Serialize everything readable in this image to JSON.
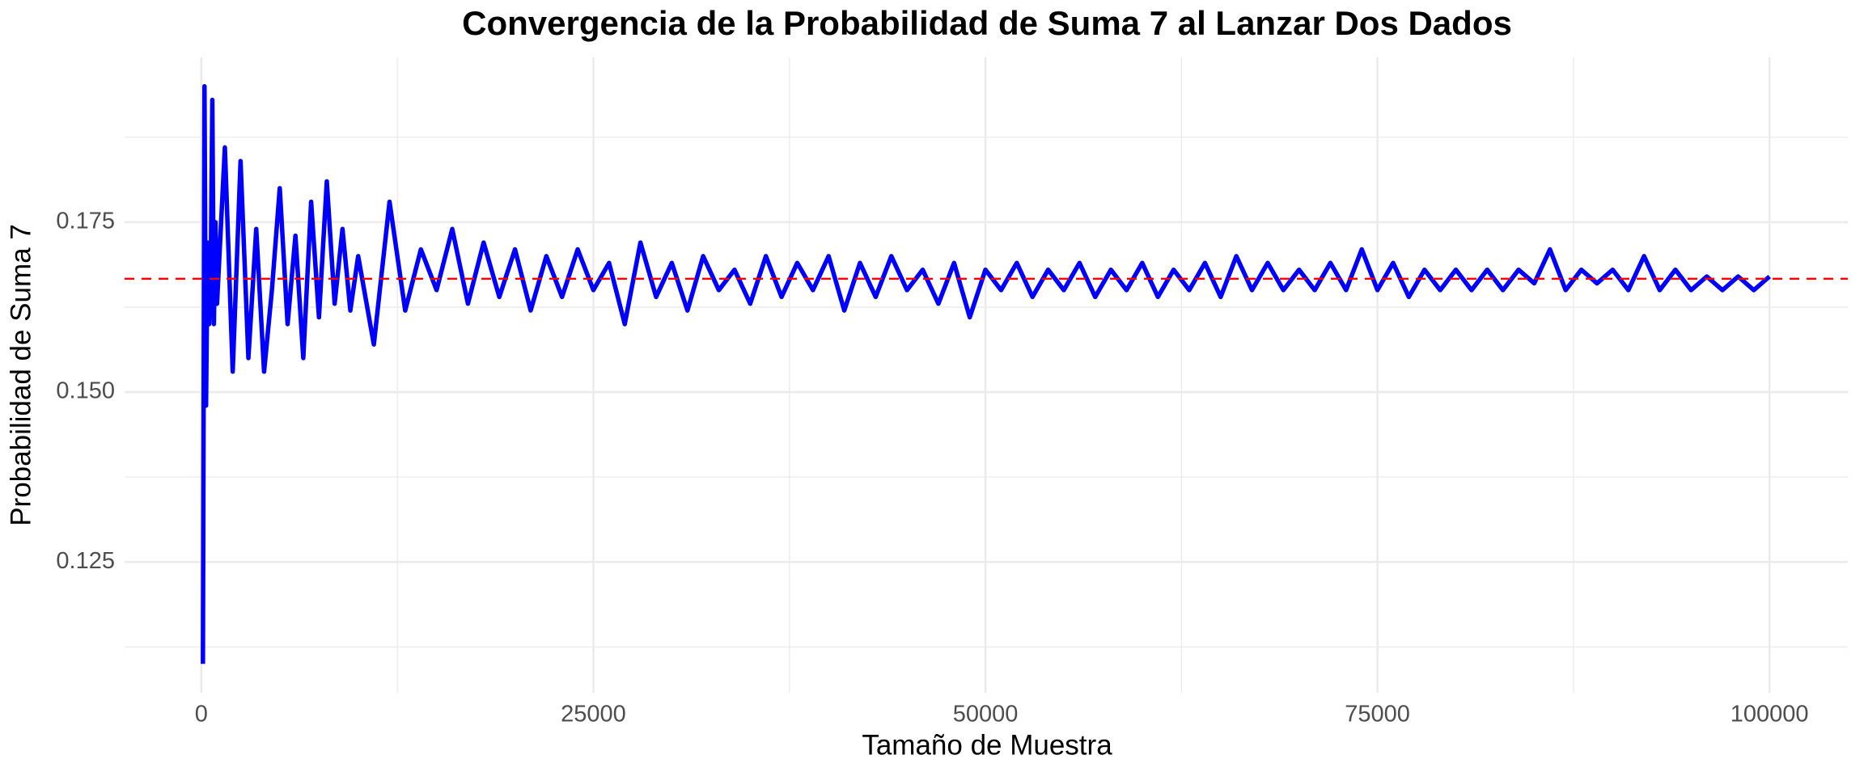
{
  "chart_data": {
    "type": "line",
    "title": "Convergencia de la Probabilidad de Suma 7 al Lanzar Dos Dados",
    "x_label": "Tamaño de Muestra",
    "y_label": "Probabilidad de Suma 7",
    "x": [
      100,
      200,
      300,
      400,
      500,
      600,
      700,
      800,
      900,
      1000,
      1500,
      2000,
      2500,
      3000,
      3500,
      4000,
      4500,
      5000,
      5500,
      6000,
      6500,
      7000,
      7500,
      8000,
      8500,
      9000,
      9500,
      10000,
      11000,
      12000,
      13000,
      14000,
      15000,
      16000,
      17000,
      18000,
      19000,
      20000,
      21000,
      22000,
      23000,
      24000,
      25000,
      26000,
      27000,
      28000,
      29000,
      30000,
      31000,
      32000,
      33000,
      34000,
      35000,
      36000,
      37000,
      38000,
      39000,
      40000,
      41000,
      42000,
      43000,
      44000,
      45000,
      46000,
      47000,
      48000,
      49000,
      50000,
      51000,
      52000,
      53000,
      54000,
      55000,
      56000,
      57000,
      58000,
      59000,
      60000,
      61000,
      62000,
      63000,
      64000,
      65000,
      66000,
      67000,
      68000,
      69000,
      70000,
      71000,
      72000,
      73000,
      74000,
      75000,
      76000,
      77000,
      78000,
      79000,
      80000,
      81000,
      82000,
      83000,
      84000,
      85000,
      86000,
      87000,
      88000,
      89000,
      90000,
      91000,
      92000,
      93000,
      94000,
      95000,
      96000,
      97000,
      98000,
      99000,
      100000
    ],
    "series": [
      {
        "name": "Probabilidad",
        "color": "#0000ff",
        "values": [
          0.11,
          0.195,
          0.148,
          0.172,
          0.16,
          0.168,
          0.193,
          0.16,
          0.175,
          0.163,
          0.186,
          0.153,
          0.184,
          0.155,
          0.174,
          0.153,
          0.165,
          0.18,
          0.16,
          0.173,
          0.155,
          0.178,
          0.161,
          0.181,
          0.163,
          0.174,
          0.162,
          0.17,
          0.157,
          0.178,
          0.162,
          0.171,
          0.165,
          0.174,
          0.163,
          0.172,
          0.164,
          0.171,
          0.162,
          0.17,
          0.164,
          0.171,
          0.165,
          0.169,
          0.16,
          0.172,
          0.164,
          0.169,
          0.162,
          0.17,
          0.165,
          0.168,
          0.163,
          0.17,
          0.164,
          0.169,
          0.165,
          0.17,
          0.162,
          0.169,
          0.164,
          0.17,
          0.165,
          0.168,
          0.163,
          0.169,
          0.161,
          0.168,
          0.165,
          0.169,
          0.164,
          0.168,
          0.165,
          0.169,
          0.164,
          0.168,
          0.165,
          0.169,
          0.164,
          0.168,
          0.165,
          0.169,
          0.164,
          0.17,
          0.165,
          0.169,
          0.165,
          0.168,
          0.165,
          0.169,
          0.165,
          0.171,
          0.165,
          0.169,
          0.164,
          0.168,
          0.165,
          0.168,
          0.165,
          0.168,
          0.165,
          0.168,
          0.166,
          0.171,
          0.165,
          0.168,
          0.166,
          0.168,
          0.165,
          0.17,
          0.165,
          0.168,
          0.165,
          0.167,
          0.165,
          0.167,
          0.165,
          0.167
        ]
      }
    ],
    "reference_line": {
      "value": 0.16667,
      "color": "#ff0000",
      "style": "dashed"
    },
    "xlim": [
      -4895,
      104995
    ],
    "xticks": [
      0,
      25000,
      50000,
      75000,
      100000
    ],
    "xminor": [
      12500,
      37500,
      62500,
      87500
    ],
    "ylim": [
      0.10575,
      0.19925
    ],
    "yticks": [
      {
        "value": 0.125,
        "label": "0.125"
      },
      {
        "value": 0.15,
        "label": "0.150"
      },
      {
        "value": 0.175,
        "label": "0.175"
      }
    ],
    "yminor": [
      0.1125,
      0.1375,
      0.1625,
      0.1875
    ],
    "grid": true
  }
}
